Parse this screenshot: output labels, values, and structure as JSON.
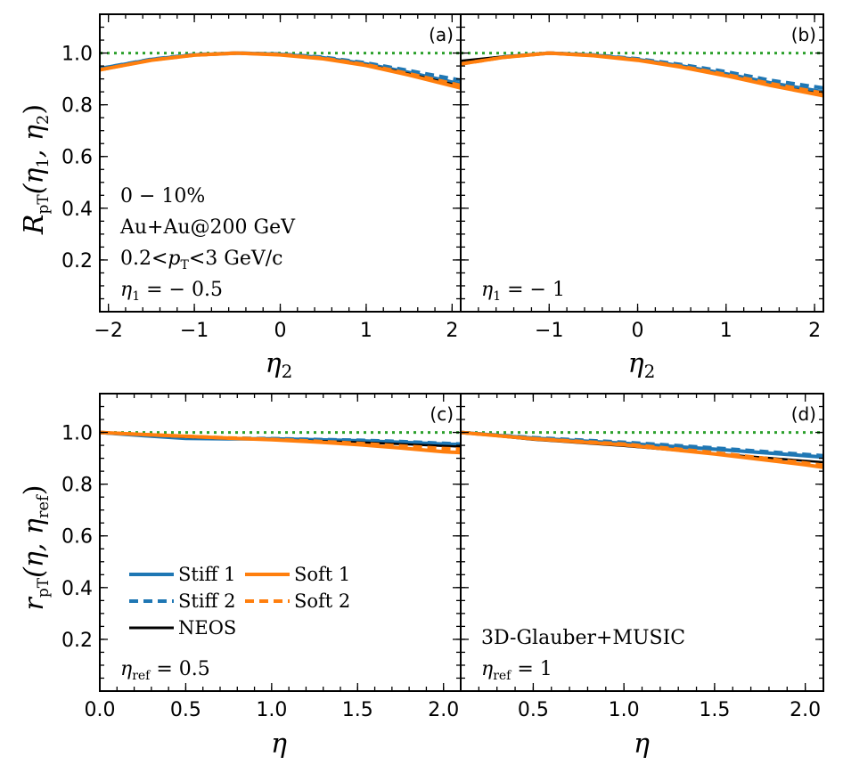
{
  "colors": {
    "stiff": "#1f77b4",
    "soft": "#ff7f0e",
    "neos": "#000000",
    "reference": "#2ca02c"
  },
  "legend": {
    "stiff1": "Stiff 1",
    "stiff2": "Stiff 2",
    "soft1": "Soft 1",
    "soft2": "Soft 2",
    "neos": "NEOS"
  },
  "annotations": {
    "a_centrality": "0 − 10%",
    "a_system": "Au+Au@200 GeV",
    "a_pt_pre": "0.2<",
    "a_pt_var": "p",
    "a_pt_sub": "T",
    "a_pt_post": "<3 GeV/c",
    "a_eta_var": "η",
    "a_eta_sub": "1",
    "a_eta_val": " = − 0.5",
    "b_eta_var": "η",
    "b_eta_sub": "1",
    "b_eta_val": " = − 1",
    "c_eta_var": "η",
    "c_eta_sub": "ref",
    "c_eta_val": " = 0.5",
    "d_model": "3D-Glauber+MUSIC",
    "d_eta_var": "η",
    "d_eta_sub": "ref",
    "d_eta_val": " = 1"
  },
  "axis_titles": {
    "top_y_R": "R",
    "top_y_sub": "pT",
    "top_y_args": "(η",
    "top_y_1": "1",
    "top_y_mid": ", η",
    "top_y_2": "2",
    "top_y_close": ")",
    "bottom_y_r": "r",
    "bottom_y_sub": "pT",
    "bottom_y_args": "(η, η",
    "bottom_y_ref": "ref",
    "bottom_y_close": ")",
    "top_x_var": "η",
    "top_x_sub": "2",
    "bottom_x": "η"
  },
  "chart_data": [
    {
      "type": "line",
      "panel": "(a)",
      "xlim": [
        -2.1,
        2.1
      ],
      "ylim": [
        0,
        1.15
      ],
      "xticks": [
        "−2",
        "−1",
        "0",
        "1",
        "2"
      ],
      "xtick_values": [
        -2,
        -1,
        0,
        1,
        2
      ],
      "yticks": [
        "0.2",
        "0.4",
        "0.6",
        "0.8",
        "1.0"
      ],
      "ytick_values": [
        0.2,
        0.4,
        0.6,
        0.8,
        1.0
      ],
      "reference_line": 1.0,
      "x": [
        -2.1,
        -1.5,
        -1.0,
        -0.5,
        0.0,
        0.5,
        1.0,
        1.5,
        2.1
      ],
      "series": [
        {
          "name": "Stiff 1",
          "values": [
            0.94,
            0.975,
            0.993,
            1.0,
            0.995,
            0.982,
            0.958,
            0.925,
            0.88
          ]
        },
        {
          "name": "Stiff 2",
          "values": [
            0.94,
            0.976,
            0.994,
            1.0,
            0.996,
            0.984,
            0.962,
            0.932,
            0.895
          ]
        },
        {
          "name": "Soft 1",
          "values": [
            0.935,
            0.972,
            0.992,
            1.0,
            0.993,
            0.978,
            0.952,
            0.915,
            0.865
          ]
        },
        {
          "name": "Soft 2",
          "values": [
            0.935,
            0.973,
            0.992,
            1.0,
            0.994,
            0.98,
            0.955,
            0.92,
            0.875
          ]
        },
        {
          "name": "NEOS",
          "values": [
            0.938,
            0.974,
            0.993,
            1.0,
            0.994,
            0.98,
            0.955,
            0.92,
            0.872
          ]
        }
      ]
    },
    {
      "type": "line",
      "panel": "(b)",
      "xlim": [
        -2.0,
        2.1
      ],
      "ylim": [
        0,
        1.15
      ],
      "xticks": [
        "−1",
        "0",
        "1",
        "2"
      ],
      "xtick_values": [
        -1,
        0,
        1,
        2
      ],
      "yticks": [
        "0.2",
        "0.4",
        "0.6",
        "0.8",
        "1.0"
      ],
      "ytick_values": [
        0.2,
        0.4,
        0.6,
        0.8,
        1.0
      ],
      "reference_line": 1.0,
      "x": [
        -2.0,
        -1.5,
        -1.0,
        -0.5,
        0.0,
        0.5,
        1.0,
        1.5,
        2.1
      ],
      "series": [
        {
          "name": "Stiff 1",
          "values": [
            0.96,
            0.985,
            1.0,
            0.992,
            0.975,
            0.95,
            0.92,
            0.885,
            0.85
          ]
        },
        {
          "name": "Stiff 2",
          "values": [
            0.962,
            0.986,
            1.0,
            0.993,
            0.978,
            0.955,
            0.928,
            0.895,
            0.865
          ]
        },
        {
          "name": "Soft 1",
          "values": [
            0.958,
            0.984,
            1.0,
            0.99,
            0.972,
            0.945,
            0.912,
            0.875,
            0.835
          ]
        },
        {
          "name": "Soft 2",
          "values": [
            0.958,
            0.984,
            1.0,
            0.991,
            0.974,
            0.948,
            0.917,
            0.882,
            0.845
          ]
        },
        {
          "name": "NEOS",
          "values": [
            0.97,
            0.987,
            1.0,
            0.991,
            0.973,
            0.946,
            0.914,
            0.877,
            0.84
          ]
        }
      ]
    },
    {
      "type": "line",
      "panel": "(c)",
      "xlim": [
        0,
        2.1
      ],
      "ylim": [
        0,
        1.15
      ],
      "xticks": [
        "0.0",
        "0.5",
        "1.0",
        "1.5",
        "2.0"
      ],
      "xtick_values": [
        0,
        0.5,
        1.0,
        1.5,
        2.0
      ],
      "yticks": [
        "0.2",
        "0.4",
        "0.6",
        "0.8",
        "1.0"
      ],
      "ytick_values": [
        0.2,
        0.4,
        0.6,
        0.8,
        1.0
      ],
      "reference_line": 1.0,
      "x": [
        0.0,
        0.25,
        0.5,
        0.75,
        1.0,
        1.25,
        1.5,
        1.75,
        2.0,
        2.1
      ],
      "series": [
        {
          "name": "Stiff 1",
          "values": [
            1.0,
            0.988,
            0.977,
            0.975,
            0.975,
            0.972,
            0.968,
            0.962,
            0.955,
            0.953
          ]
        },
        {
          "name": "Stiff 2",
          "values": [
            1.0,
            0.99,
            0.982,
            0.978,
            0.976,
            0.973,
            0.97,
            0.965,
            0.958,
            0.955
          ]
        },
        {
          "name": "Soft 1",
          "values": [
            1.0,
            0.992,
            0.985,
            0.978,
            0.972,
            0.963,
            0.953,
            0.94,
            0.925,
            0.922
          ]
        },
        {
          "name": "Soft 2",
          "values": [
            1.0,
            0.992,
            0.985,
            0.979,
            0.973,
            0.966,
            0.958,
            0.948,
            0.938,
            0.935
          ]
        },
        {
          "name": "NEOS",
          "values": [
            1.0,
            0.99,
            0.982,
            0.976,
            0.972,
            0.967,
            0.962,
            0.955,
            0.948,
            0.945
          ]
        }
      ]
    },
    {
      "type": "line",
      "panel": "(d)",
      "xlim": [
        0.1,
        2.1
      ],
      "ylim": [
        0,
        1.15
      ],
      "xticks": [
        "0.5",
        "1.0",
        "1.5",
        "2.0"
      ],
      "xtick_values": [
        0.5,
        1.0,
        1.5,
        2.0
      ],
      "yticks": [
        "0.2",
        "0.4",
        "0.6",
        "0.8",
        "1.0"
      ],
      "ytick_values": [
        0.2,
        0.4,
        0.6,
        0.8,
        1.0
      ],
      "reference_line": 1.0,
      "x": [
        0.1,
        0.5,
        1.0,
        1.5,
        2.0,
        2.1
      ],
      "series": [
        {
          "name": "Stiff 1",
          "values": [
            1.0,
            0.978,
            0.958,
            0.935,
            0.91,
            0.905
          ]
        },
        {
          "name": "Stiff 2",
          "values": [
            1.0,
            0.98,
            0.962,
            0.94,
            0.915,
            0.91
          ]
        },
        {
          "name": "Soft 1",
          "values": [
            1.0,
            0.975,
            0.952,
            0.917,
            0.875,
            0.865
          ]
        },
        {
          "name": "Soft 2",
          "values": [
            1.0,
            0.976,
            0.955,
            0.922,
            0.882,
            0.873
          ]
        },
        {
          "name": "NEOS",
          "values": [
            1.0,
            0.972,
            0.948,
            0.918,
            0.89,
            0.885
          ]
        }
      ]
    }
  ]
}
